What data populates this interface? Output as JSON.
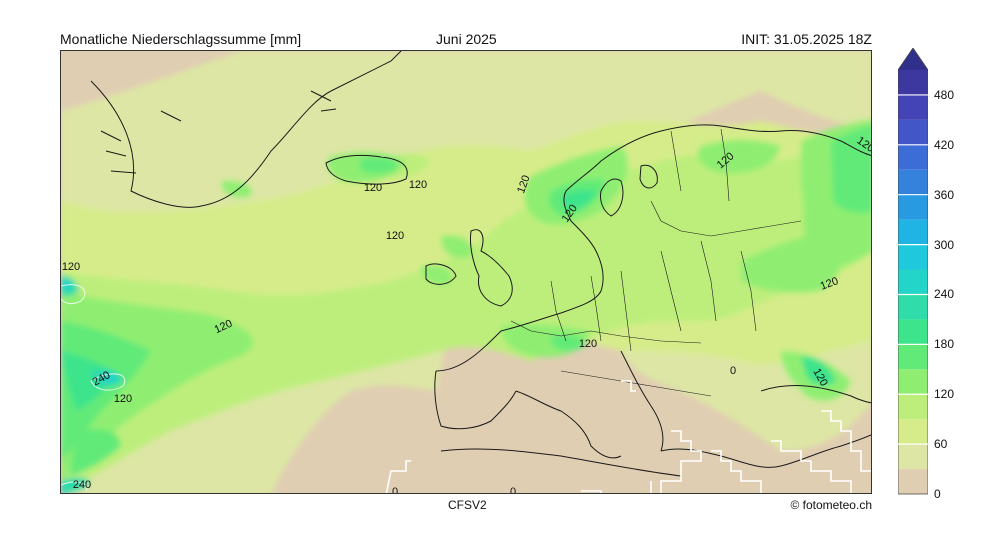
{
  "header": {
    "title": "Monatliche Niederschlagssumme [mm]",
    "period": "Juni 2025",
    "init": "INIT: 31.05.2025 18Z"
  },
  "footer": {
    "model": "CFSV2",
    "credit": "© fotometeo.ch"
  },
  "colorbar": {
    "unit": "mm",
    "extend": "max",
    "ticks": [
      "0",
      "60",
      "120",
      "180",
      "240",
      "300",
      "360",
      "420",
      "480"
    ],
    "levels": [
      0,
      30,
      60,
      90,
      120,
      150,
      180,
      210,
      240,
      270,
      300,
      330,
      360,
      390,
      420,
      450,
      480,
      510
    ],
    "colors": [
      "#e0ceb2",
      "#dde6a4",
      "#d6ec8a",
      "#bdee7c",
      "#8fee72",
      "#62ea78",
      "#3ee48c",
      "#2fdcaa",
      "#23d4c8",
      "#1fc8dc",
      "#1fb4e4",
      "#289ae2",
      "#3482dc",
      "#3c6cd6",
      "#4256c8",
      "#4444b6",
      "#3c38a0",
      "#30308c"
    ]
  },
  "contour_labels": [
    "120",
    "120",
    "120",
    "120",
    "120",
    "120",
    "120",
    "120",
    "120",
    "120",
    "120",
    "120",
    "120",
    "240",
    "240",
    "0",
    "0",
    "0"
  ]
}
